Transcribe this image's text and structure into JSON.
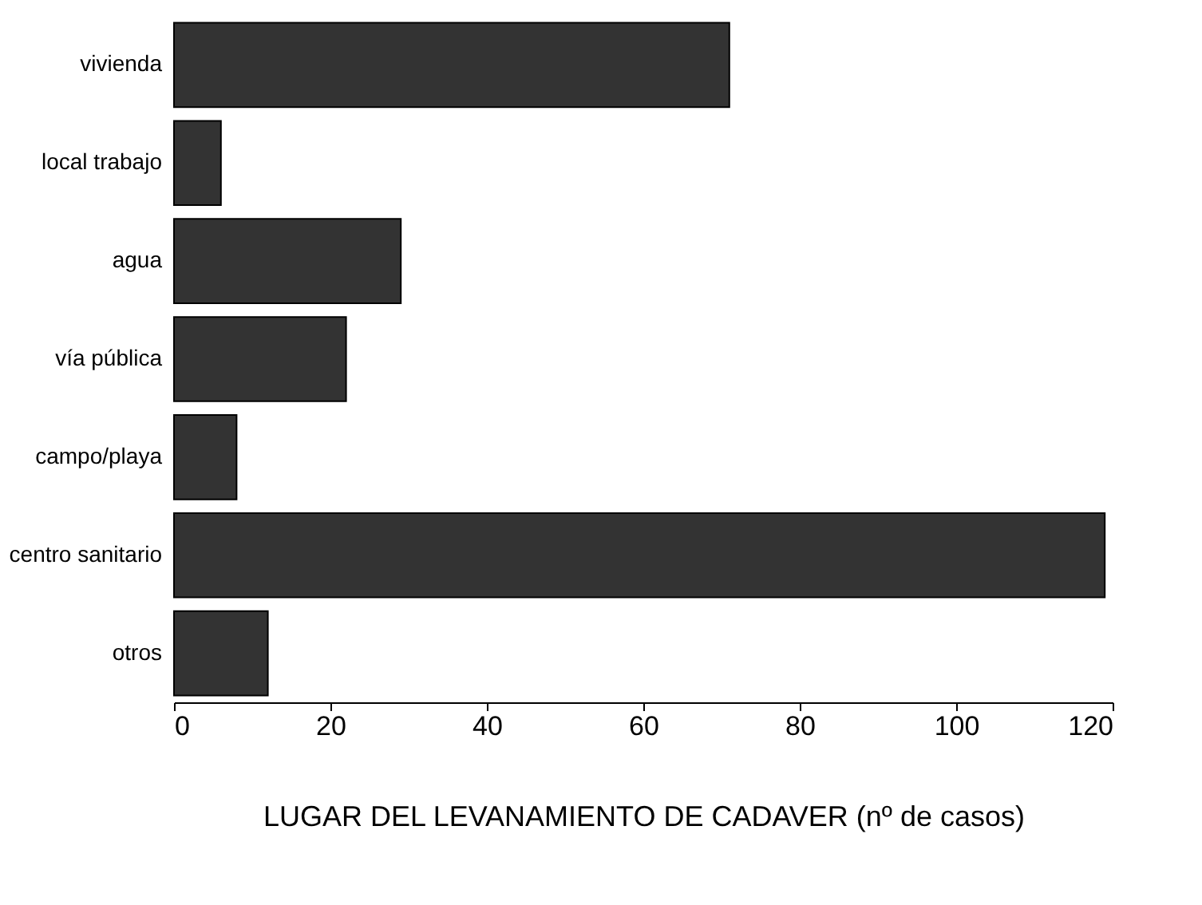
{
  "chart_data": {
    "type": "bar",
    "orientation": "horizontal",
    "xlabel": "LUGAR DEL LEVANAMIENTO DE CADAVER (nº de casos)",
    "categories": [
      "vivienda",
      "local trabajo",
      "agua",
      "vía pública",
      "campo/playa",
      "centro sanitario",
      "otros"
    ],
    "values": [
      71,
      6,
      29,
      22,
      8,
      119,
      12
    ],
    "color": "#333333",
    "xlim": [
      0,
      120
    ],
    "xticks": [
      0,
      20,
      40,
      60,
      80,
      100,
      120
    ],
    "grid": false
  }
}
